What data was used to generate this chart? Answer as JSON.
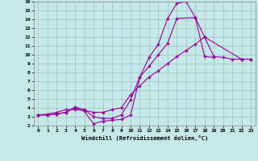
{
  "xlabel": "Windchill (Refroidissement éolien,°C)",
  "background_color": "#c5e8e8",
  "grid_color": "#a0c0c8",
  "line_color": "#990099",
  "xlim": [
    -0.5,
    23.5
  ],
  "ylim": [
    2,
    16
  ],
  "xticks": [
    0,
    1,
    2,
    3,
    4,
    5,
    6,
    7,
    8,
    9,
    10,
    11,
    12,
    13,
    14,
    15,
    16,
    17,
    18,
    19,
    20,
    21,
    22,
    23
  ],
  "yticks": [
    2,
    3,
    4,
    5,
    6,
    7,
    8,
    9,
    10,
    11,
    12,
    13,
    14,
    15,
    16
  ],
  "s1x": [
    0,
    1,
    2,
    3,
    4,
    5,
    6,
    7,
    8,
    9,
    10,
    11,
    12,
    13,
    14,
    15,
    16,
    17,
    18,
    19
  ],
  "s1y": [
    3.2,
    3.2,
    3.3,
    3.5,
    4.0,
    3.6,
    2.2,
    2.5,
    2.6,
    2.7,
    3.2,
    7.5,
    9.7,
    11.2,
    14.1,
    15.8,
    16.0,
    14.2,
    9.8,
    9.7
  ],
  "s2x": [
    0,
    1,
    2,
    3,
    4,
    5,
    6,
    7,
    8,
    9,
    10,
    11,
    12,
    13,
    14,
    15,
    17,
    18,
    19,
    20,
    21,
    22,
    23
  ],
  "s2y": [
    3.2,
    3.2,
    3.3,
    3.5,
    4.1,
    3.8,
    3.0,
    2.8,
    2.8,
    3.2,
    4.9,
    7.5,
    8.7,
    10.0,
    11.3,
    14.1,
    14.2,
    12.0,
    9.8,
    9.7,
    9.5,
    9.5,
    9.5
  ],
  "s3x": [
    0,
    1,
    2,
    3,
    4,
    5,
    6,
    7,
    8,
    9,
    10,
    11,
    12,
    13,
    14,
    15,
    16,
    17,
    18,
    22,
    23
  ],
  "s3y": [
    3.2,
    3.3,
    3.5,
    3.8,
    3.8,
    3.7,
    3.5,
    3.5,
    3.8,
    4.0,
    5.5,
    6.5,
    7.5,
    8.2,
    9.0,
    9.8,
    10.5,
    11.2,
    12.0,
    9.5,
    9.5
  ]
}
